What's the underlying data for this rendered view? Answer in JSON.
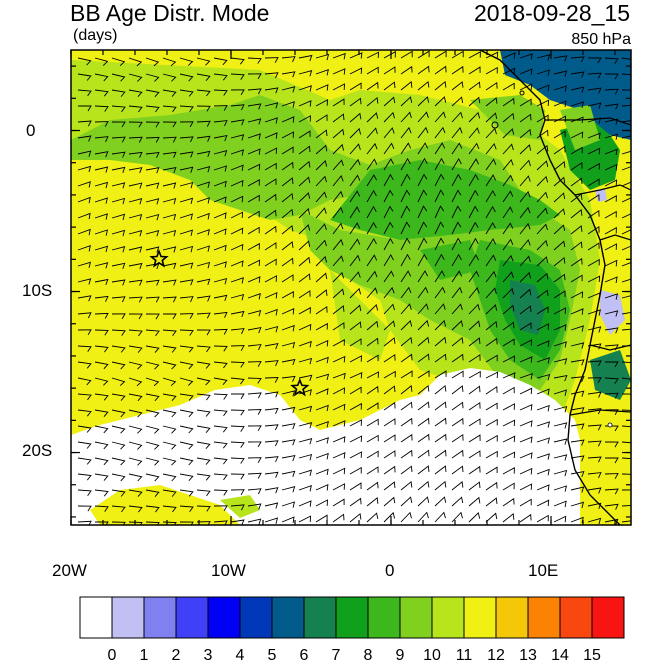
{
  "header": {
    "title": "BB Age Distr. Mode",
    "units": "(days)",
    "datetime": "2018-09-28_15",
    "level": "850 hPa"
  },
  "map": {
    "lon_range": [
      -20,
      15
    ],
    "lat_range": [
      -24.5,
      5
    ],
    "x_ticks": [
      {
        "value": -20,
        "label": "20W"
      },
      {
        "value": -10,
        "label": "10W"
      },
      {
        "value": 0,
        "label": "0"
      },
      {
        "value": 10,
        "label": "10E"
      }
    ],
    "y_ticks": [
      {
        "value": 0,
        "label": "0"
      },
      {
        "value": -10,
        "label": "10S"
      },
      {
        "value": -20,
        "label": "20S"
      }
    ],
    "markers": [
      {
        "name": "star-marker-1",
        "lon": -14.5,
        "lat": -8
      },
      {
        "name": "star-marker-2",
        "lon": -5.7,
        "lat": -16
      }
    ]
  },
  "colorbar": {
    "labels": [
      "0",
      "1",
      "2",
      "3",
      "4",
      "5",
      "6",
      "7",
      "8",
      "9",
      "10",
      "11",
      "12",
      "13",
      "14",
      "15"
    ],
    "colors": [
      "#ffffff",
      "#c0c0f4",
      "#8080f0",
      "#4040f8",
      "#0000f4",
      "#0038b8",
      "#005a8a",
      "#158050",
      "#11a01c",
      "#3cb81c",
      "#80d020",
      "#b8e41c",
      "#f0f014",
      "#f4c808",
      "#fc8204",
      "#f84810",
      "#f81410"
    ]
  }
}
